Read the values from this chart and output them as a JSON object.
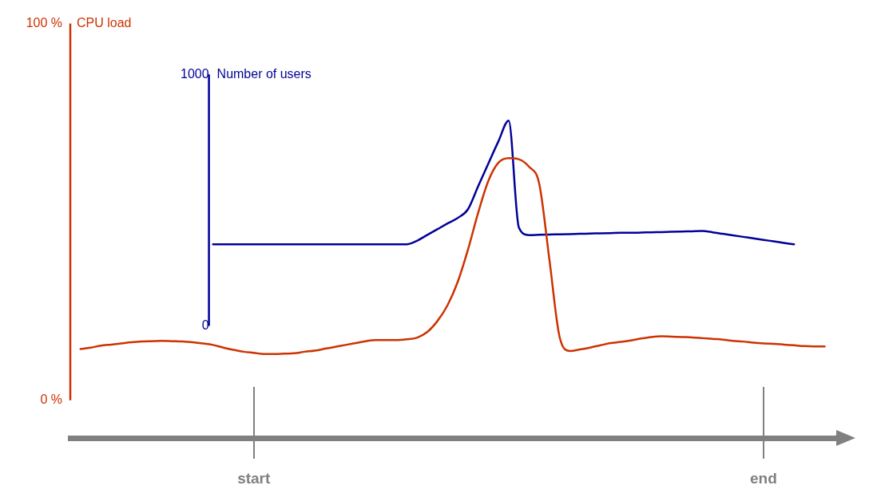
{
  "chart_data": {
    "type": "line",
    "ylabel": "CPU load",
    "y2label": "Number of users",
    "categories": [
      null,
      null,
      null,
      null,
      null,
      null,
      null,
      null,
      null,
      null,
      null,
      null,
      null,
      null,
      null,
      null,
      null,
      null,
      "start",
      null,
      null,
      null,
      null,
      null,
      null,
      null,
      null,
      null,
      null,
      null,
      null,
      null,
      null,
      null,
      null,
      null,
      null,
      null,
      null,
      null,
      null,
      null,
      null,
      null,
      null,
      null,
      null,
      null,
      null,
      null,
      null,
      null,
      null,
      null,
      null,
      null,
      null,
      null,
      null,
      null,
      null,
      null,
      null,
      null,
      null,
      null,
      null,
      null,
      "end",
      null,
      null,
      null,
      null,
      null,
      null,
      null,
      null
    ],
    "ylim": [
      -10,
      100
    ],
    "yticks": [
      {
        "value": 0,
        "label": "0 %"
      },
      {
        "value": 100,
        "label": "100 %"
      }
    ],
    "y2lim": [
      -446,
      1202
    ],
    "y2ticks": [
      0,
      1000
    ],
    "series": [
      {
        "color": "#cc3300",
        "values": [
          null,
          13.6,
          14.0,
          14.5,
          14.8,
          15.1,
          15.4,
          15.6,
          15.7,
          15.8,
          15.7,
          15.6,
          15.4,
          15.1,
          14.7,
          14.0,
          13.4,
          12.9,
          12.6,
          12.3,
          12.3,
          12.4,
          12.5,
          12.9,
          13.2,
          13.7,
          14.2,
          14.7,
          15.2,
          15.7,
          16.0,
          16.0,
          16.0,
          16.2,
          16.6,
          18.1,
          21.0,
          25.2,
          31.4,
          39.9,
          49.7,
          58.2,
          63.1,
          64.3,
          64.0,
          62.0,
          57.5,
          37.3,
          16.8,
          13.1,
          13.5,
          14.0,
          14.6,
          15.2,
          15.5,
          15.9,
          16.4,
          16.8,
          17.0,
          16.9,
          16.8,
          16.7,
          16.5,
          16.3,
          16.1,
          15.8,
          15.6,
          15.3,
          15.1,
          15.0,
          14.8,
          14.6,
          14.4,
          14.3,
          14.3,
          null,
          null
        ]
      },
      {
        "color": "#000099",
        "axis": "y2",
        "values": [
          null,
          null,
          null,
          null,
          null,
          null,
          null,
          null,
          null,
          null,
          null,
          null,
          null,
          null,
          324,
          324,
          324,
          324,
          324,
          324,
          324,
          324,
          324,
          324,
          324,
          324,
          324,
          324,
          324,
          324,
          324,
          324,
          324,
          324,
          338,
          361,
          384,
          407,
          429,
          463,
          554,
          645,
          734,
          816,
          392,
          361,
          362,
          363,
          364,
          365,
          366,
          367,
          368,
          369,
          370,
          370,
          371,
          372,
          373,
          374,
          375,
          376,
          377,
          372,
          366,
          360,
          354,
          348,
          342,
          336,
          330,
          324,
          null,
          null,
          null,
          null,
          null
        ]
      }
    ],
    "grid": false,
    "legend": false,
    "marker": "none",
    "line_style": "solid"
  }
}
